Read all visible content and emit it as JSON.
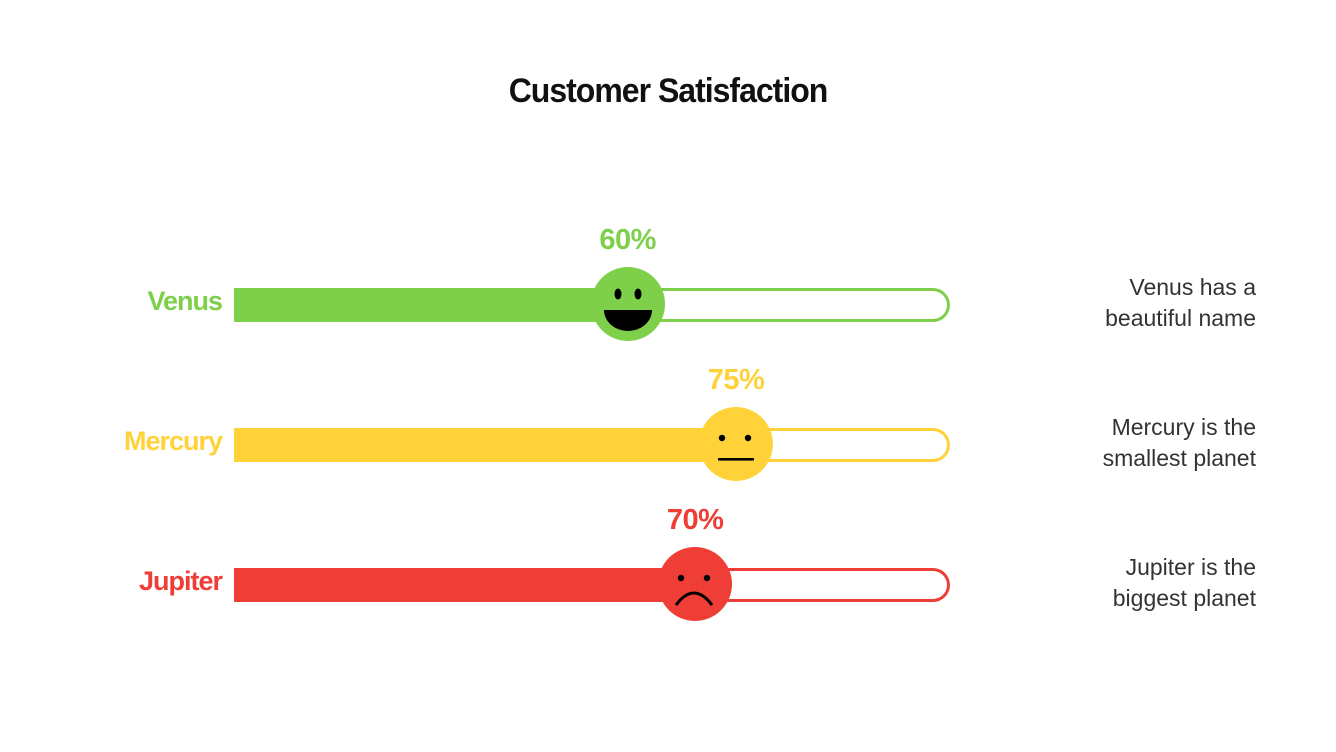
{
  "title": "Customer Satisfaction",
  "colors": {
    "green": "#7ed04b",
    "yellow": "#ffd23a",
    "red": "#ef3e36",
    "text": "#333333"
  },
  "rows": [
    {
      "label": "Venus",
      "percent_label": "60%",
      "description_line1": "Venus has a",
      "description_line2": "beautiful name",
      "face": "happy-face-icon"
    },
    {
      "label": "Mercury",
      "percent_label": "75%",
      "description_line1": "Mercury is the",
      "description_line2": "smallest planet",
      "face": "neutral-face-icon"
    },
    {
      "label": "Jupiter",
      "percent_label": "70%",
      "description_line1": "Jupiter is the",
      "description_line2": "biggest planet",
      "face": "sad-face-icon"
    }
  ],
  "chart_data": {
    "type": "bar",
    "title": "Customer Satisfaction",
    "categories": [
      "Venus",
      "Mercury",
      "Jupiter"
    ],
    "values": [
      60,
      75,
      70
    ],
    "ylim": [
      0,
      100
    ],
    "unit": "%",
    "colors": [
      "#7ed04b",
      "#ffd23a",
      "#ef3e36"
    ]
  }
}
